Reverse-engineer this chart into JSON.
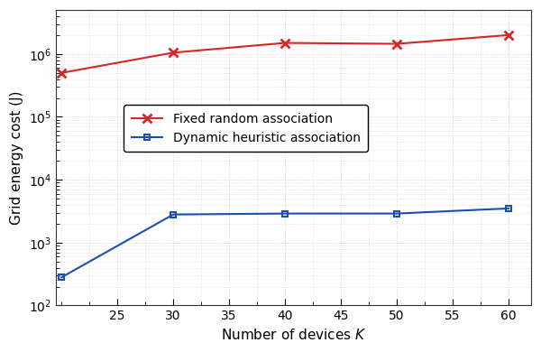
{
  "x_values": [
    20,
    30,
    40,
    50,
    60
  ],
  "red_y": [
    500000,
    1050000,
    1500000,
    1450000,
    2000000
  ],
  "blue_y": [
    280,
    2800,
    2900,
    2900,
    3500
  ],
  "red_label": "Fixed random association",
  "blue_label": "Dynamic heuristic association",
  "red_color": "#d62728",
  "blue_color": "#1f4fad",
  "xlabel": "Number of devices $K$",
  "ylabel": "Grid energy cost (J)",
  "xlim": [
    19.5,
    62
  ],
  "ylim_log": [
    100,
    5000000
  ],
  "xticks": [
    25,
    30,
    35,
    40,
    45,
    50,
    55,
    60
  ],
  "yticks": [
    100,
    1000,
    10000,
    100000,
    1000000
  ],
  "background_color": "#ffffff",
  "grid_color": "#cccccc",
  "label_fontsize": 11,
  "tick_fontsize": 10,
  "legend_fontsize": 10
}
